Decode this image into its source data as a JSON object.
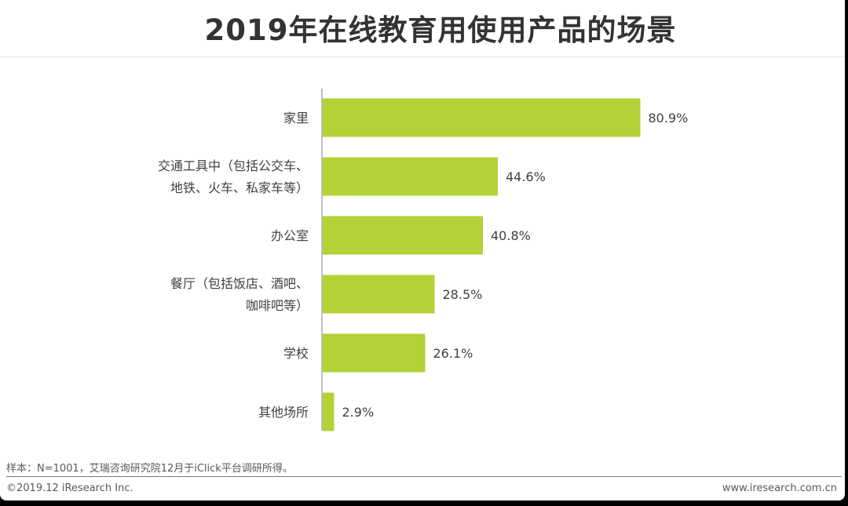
{
  "chart_data": {
    "type": "bar",
    "orientation": "horizontal",
    "title": "2019年在线教育用使用产品的场景",
    "categories": [
      [
        "家里"
      ],
      [
        "交通工具中（包括公交车、",
        "地铁、火车、私家车等）"
      ],
      [
        "办公室"
      ],
      [
        "餐厅（包括饭店、酒吧、",
        "咖啡吧等）"
      ],
      [
        "学校"
      ],
      [
        "其他场所"
      ]
    ],
    "values": [
      80.9,
      44.6,
      40.8,
      28.5,
      26.1,
      2.9
    ],
    "value_labels": [
      "80.9%",
      "44.6%",
      "40.8%",
      "28.5%",
      "26.1%",
      "2.9%"
    ],
    "xlim": [
      0,
      100
    ],
    "xlabel": "",
    "ylabel": "",
    "bar_color": "#b2d235"
  },
  "footer": {
    "note": "样本：N=1001，艾瑞咨询研究院12月于iClick平台调研所得。",
    "copyright": "©2019.12 iResearch Inc.",
    "website": "www.iresearch.com.cn"
  }
}
